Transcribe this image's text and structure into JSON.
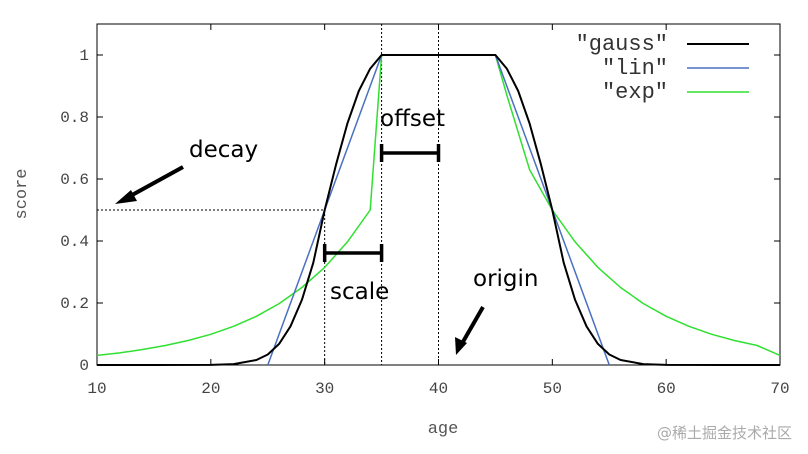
{
  "chart_data": {
    "type": "line",
    "xlabel": "age",
    "ylabel": "score",
    "xlim": [
      10,
      70
    ],
    "ylim": [
      0,
      1.1
    ],
    "xticks": [
      "10",
      "20",
      "30",
      "40",
      "50",
      "60",
      "70"
    ],
    "yticks": [
      "0",
      "0.2",
      "0.4",
      "0.6",
      "0.8",
      "1"
    ],
    "legend_position": "top-right",
    "series": [
      {
        "name": "\"gauss\"",
        "color": "#000000",
        "x": [
          10,
          15,
          20,
          22,
          24,
          25,
          26,
          27,
          28,
          29,
          30,
          31,
          32,
          33,
          34,
          35,
          45,
          46,
          47,
          48,
          49,
          50,
          51,
          52,
          53,
          54,
          55,
          56,
          58,
          60,
          65,
          70
        ],
        "y": [
          0,
          0,
          0.0004,
          0.003,
          0.016,
          0.034,
          0.068,
          0.125,
          0.21,
          0.33,
          0.5,
          0.646,
          0.779,
          0.884,
          0.956,
          1,
          1,
          0.956,
          0.884,
          0.779,
          0.646,
          0.5,
          0.33,
          0.21,
          0.125,
          0.068,
          0.034,
          0.016,
          0.003,
          0.0004,
          0,
          0
        ]
      },
      {
        "name": "\"lin\"",
        "color": "#4a70c0",
        "x": [
          25,
          35,
          45,
          55
        ],
        "y": [
          0,
          1,
          1,
          0
        ]
      },
      {
        "name": "\"exp\"",
        "color": "#30e030",
        "x": [
          10,
          12,
          14,
          16,
          18,
          20,
          22,
          24,
          26,
          28,
          30,
          32,
          34,
          35,
          45,
          46,
          48,
          50,
          52,
          54,
          56,
          58,
          60,
          62,
          64,
          66,
          68,
          70
        ],
        "y": [
          0.031,
          0.039,
          0.05,
          0.063,
          0.079,
          0.099,
          0.125,
          0.157,
          0.198,
          0.25,
          0.315,
          0.397,
          0.5,
          1,
          1,
          0.871,
          0.63,
          0.5,
          0.397,
          0.315,
          0.25,
          0.198,
          0.157,
          0.125,
          0.099,
          0.079,
          0.063,
          0.031
        ]
      }
    ],
    "annotations": {
      "decay": {
        "text": "decay",
        "y": 0.5
      },
      "offset": {
        "text": "offset",
        "from": 35,
        "to": 40
      },
      "scale": {
        "text": "scale",
        "from": 30,
        "to": 35
      },
      "origin": {
        "text": "origin",
        "x": 40
      },
      "guides": {
        "decay_y": 0.5,
        "scale_x": 30,
        "offset_x": 35,
        "origin_x": 40
      }
    }
  },
  "watermark": "@稀土掘金技术社区"
}
